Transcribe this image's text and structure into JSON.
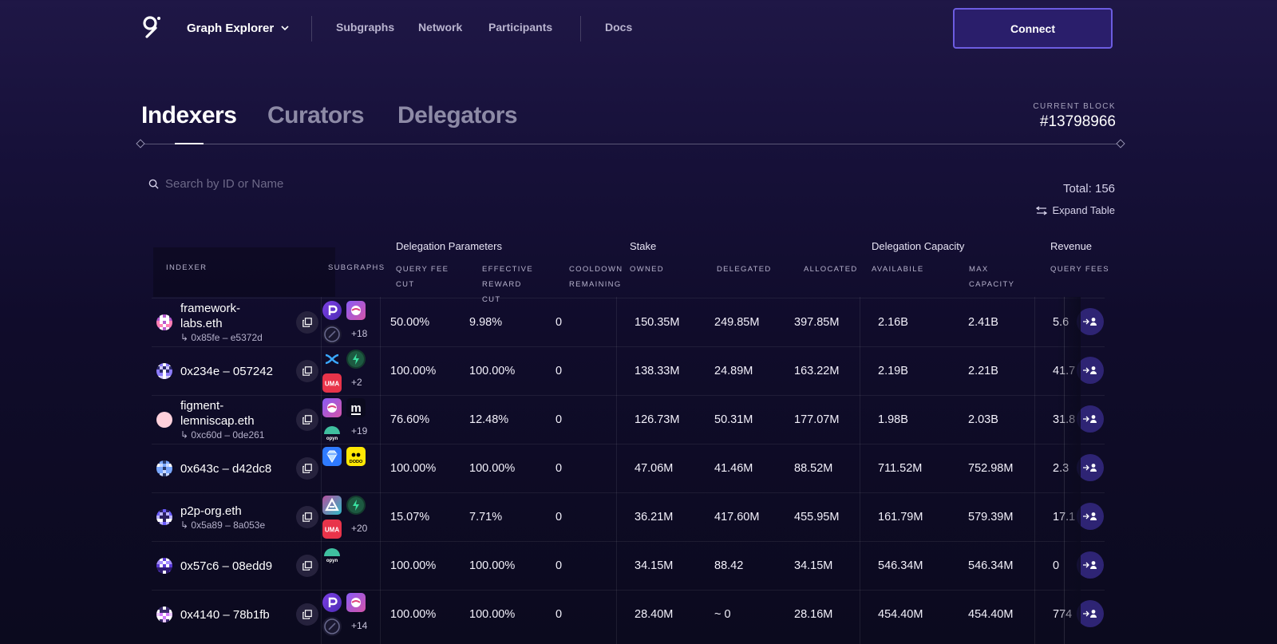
{
  "nav": {
    "brand": "Graph Explorer",
    "links": [
      "Subgraphs",
      "Network",
      "Participants",
      "Docs"
    ],
    "connect_label": "Connect"
  },
  "tabs": [
    "Indexers",
    "Curators",
    "Delegators"
  ],
  "current_block": {
    "label": "CURRENT BLOCK",
    "value": "#13798966"
  },
  "search": {
    "placeholder": "Search by ID or Name"
  },
  "total": "Total: 156",
  "expand_label": "Expand Table",
  "groups": {
    "delegation_parameters": "Delegation Parameters",
    "stake": "Stake",
    "delegation_capacity": "Delegation Capacity",
    "revenue": "Revenue"
  },
  "headers": {
    "indexer": "INDEXER",
    "subgraphs": "SUBGRAPHS",
    "query_fee_cut": [
      "QUERY FEE",
      "CUT"
    ],
    "effective_reward_cut": [
      "EFFECTIVE",
      "REWARD",
      "CUT"
    ],
    "cooldown_remaining": [
      "COOLDOWN",
      "REMAINING"
    ],
    "owned": "OWNED",
    "delegated": "DELEGATED",
    "allocated": "ALLOCATED",
    "available": "AVAILABILE",
    "max_capacity": [
      "MAX",
      "CAPACITY"
    ],
    "query_fees": "QUERY FEES"
  },
  "rows": [
    {
      "name": "framework-",
      "name2": "labs.eth",
      "address": "↳ 0x85fe – e5372d",
      "subgraph_icons": [
        "p-icon",
        "pink-ball-icon",
        "circle-dark-icon"
      ],
      "more": "+18",
      "query_fee_cut": "50.00%",
      "reward_cut": "9.98%",
      "cooldown": "0",
      "owned": "150.35M",
      "delegated": "249.85M",
      "allocated": "397.85M",
      "available": "2.16B",
      "max_capacity": "2.41B",
      "query_fees": "5.6"
    },
    {
      "name": "0x234e – 057242",
      "name2": "",
      "address": "",
      "subgraph_icons": [
        "x-swap-icon",
        "green-bolt-icon",
        "uma-icon"
      ],
      "more": "+2",
      "query_fee_cut": "100.00%",
      "reward_cut": "100.00%",
      "cooldown": "0",
      "owned": "138.33M",
      "delegated": "24.89M",
      "allocated": "163.22M",
      "available": "2.19B",
      "max_capacity": "2.21B",
      "query_fees": "41.7"
    },
    {
      "name": "figment-",
      "name2": "lemniscap.eth",
      "address": "↳ 0xc60d – 0de261",
      "subgraph_icons": [
        "pink-ball-icon",
        "m-icon",
        "opyn-icon"
      ],
      "more": "+19",
      "query_fee_cut": "76.60%",
      "reward_cut": "12.48%",
      "cooldown": "0",
      "owned": "126.73M",
      "delegated": "50.31M",
      "allocated": "177.07M",
      "available": "1.98B",
      "max_capacity": "2.03B",
      "query_fees": "31.8"
    },
    {
      "name": "0x643c – d42dc8",
      "name2": "",
      "address": "",
      "subgraph_icons": [
        "diamond-icon",
        "dodo-icon"
      ],
      "more": "",
      "query_fee_cut": "100.00%",
      "reward_cut": "100.00%",
      "cooldown": "0",
      "owned": "47.06M",
      "delegated": "41.46M",
      "allocated": "88.52M",
      "available": "711.52M",
      "max_capacity": "752.98M",
      "query_fees": "2.3"
    },
    {
      "name": "p2p-org.eth",
      "name2": "",
      "address": "↳ 0x5a89 – 8a053e",
      "subgraph_icons": [
        "aave-icon",
        "green-bolt-icon",
        "uma-icon"
      ],
      "more": "+20",
      "query_fee_cut": "15.07%",
      "reward_cut": "7.71%",
      "cooldown": "0",
      "owned": "36.21M",
      "delegated": "417.60M",
      "allocated": "455.95M",
      "available": "161.79M",
      "max_capacity": "579.39M",
      "query_fees": "17.1"
    },
    {
      "name": "0x57c6 – 08edd9",
      "name2": "",
      "address": "",
      "subgraph_icons": [
        "opyn-icon"
      ],
      "more": "",
      "query_fee_cut": "100.00%",
      "reward_cut": "100.00%",
      "cooldown": "0",
      "owned": "34.15M",
      "delegated": "88.42",
      "allocated": "34.15M",
      "available": "546.34M",
      "max_capacity": "546.34M",
      "query_fees": "0"
    },
    {
      "name": "0x4140 – 78b1fb",
      "name2": "",
      "address": "",
      "subgraph_icons": [
        "p-icon",
        "pink-ball-icon",
        "circle-dark-icon"
      ],
      "more": "+14",
      "query_fee_cut": "100.00%",
      "reward_cut": "100.00%",
      "cooldown": "0",
      "owned": "28.40M",
      "delegated": "~ 0",
      "allocated": "28.16M",
      "available": "454.40M",
      "max_capacity": "454.40M",
      "query_fees": "774"
    }
  ]
}
